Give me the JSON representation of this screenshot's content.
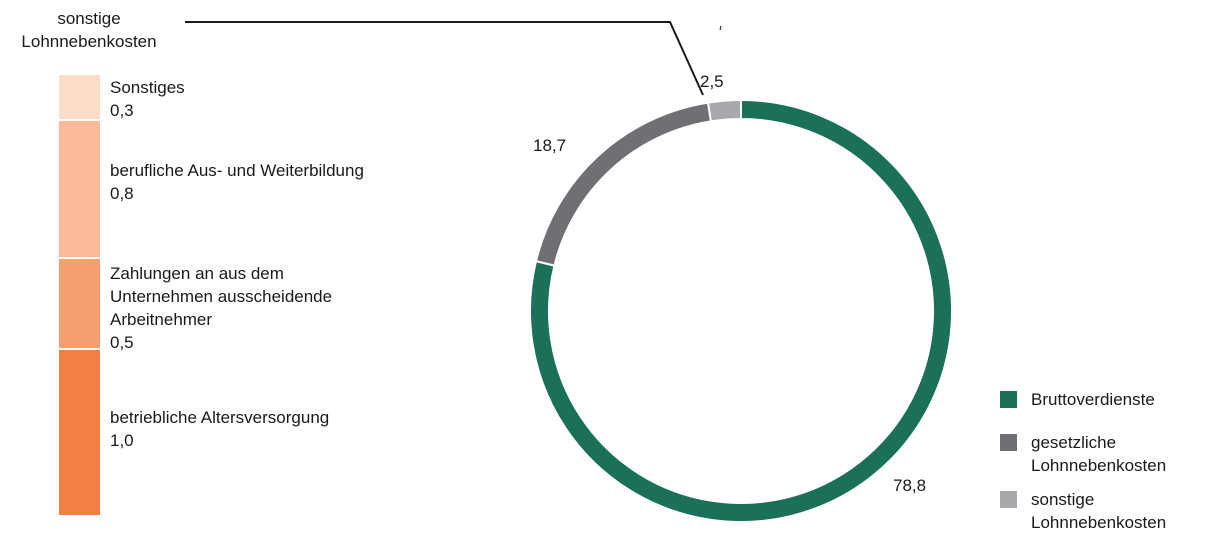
{
  "chart_data": [
    {
      "type": "pie",
      "donut": true,
      "slices": [
        {
          "label": "Bruttoverdienste",
          "value": 78.8,
          "display": "78,8",
          "color": "#1a7058"
        },
        {
          "label": "gesetzliche Lohnnebenkosten",
          "value": 18.7,
          "display": "18,7",
          "color": "#6f7073"
        },
        {
          "label": "sonstige Lohnnebenkosten",
          "value": 2.5,
          "display": "2,5",
          "color": "#a7a9ac"
        }
      ],
      "legend": {
        "placement": "bottom-right",
        "items": [
          {
            "lines": [
              "Bruttoverdienste"
            ],
            "color": "#1a7058"
          },
          {
            "lines": [
              "gesetzliche",
              "Lohnnebenkosten"
            ],
            "color": "#6f7073"
          },
          {
            "lines": [
              "sonstige",
              "Lohnnebenkosten"
            ],
            "color": "#a7a9ac"
          }
        ]
      }
    },
    {
      "type": "bar",
      "stacked": true,
      "title_lines": [
        "sonstige",
        "Lohnnebenkosten"
      ],
      "segments": [
        {
          "lines": [
            "Sonstiges"
          ],
          "value": 0.3,
          "display": "0,3",
          "color": "#fddcc7"
        },
        {
          "lines": [
            "berufliche Aus- und Weiterbildung"
          ],
          "value": 0.8,
          "display": "0,8",
          "color": "#fbba99"
        },
        {
          "lines": [
            "Zahlungen an aus dem",
            "Unternehmen ausscheidende",
            "Arbeitnehmer"
          ],
          "value": 0.5,
          "display": "0,5",
          "color": "#f89f71"
        },
        {
          "lines": [
            "betriebliche Altersversorgung"
          ],
          "value": 1.0,
          "display": "1,0",
          "color": "#f47f45"
        }
      ]
    }
  ]
}
